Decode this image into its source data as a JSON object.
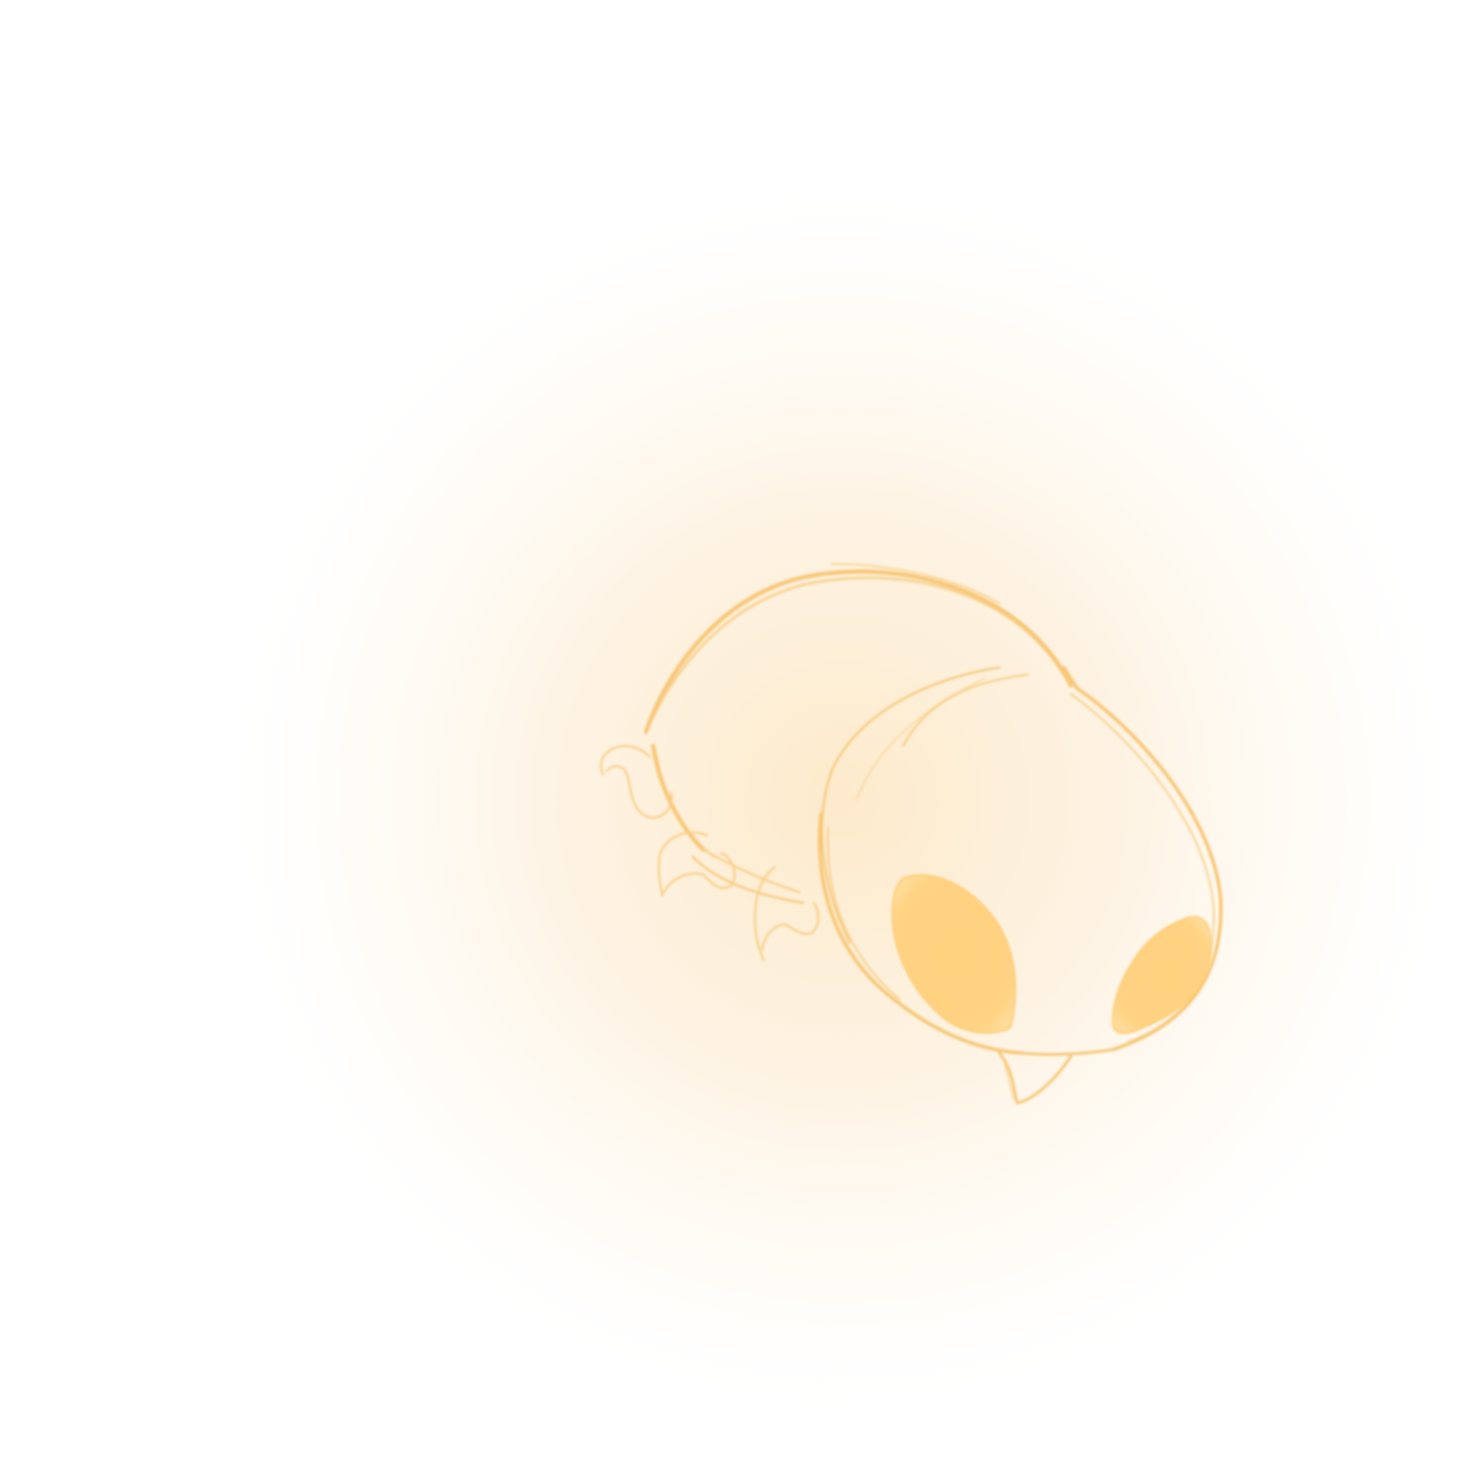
{
  "scene": {
    "subject": "cartoon-creature-sketch",
    "icon": "creature-icon"
  },
  "colors": {
    "background": "#ffffff",
    "glow_inner": "#fde9c8",
    "glow_outer": "#ffffff",
    "line": "#f7c878",
    "line_faint": "#fad9a0",
    "eye_fill": "#ffd27f",
    "eye_edge": "#ffc869"
  }
}
